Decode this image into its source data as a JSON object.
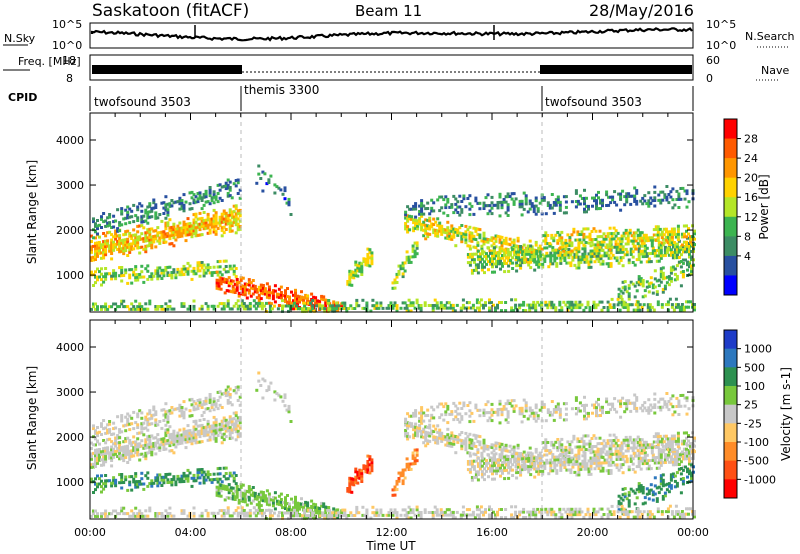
{
  "header": {
    "station": "Saskatoon (fitACF)",
    "beam": "Beam 11",
    "date": "28/May/2016"
  },
  "chart_data": [
    {
      "type": "line",
      "panel": "noise",
      "ylabel_left": "N.Sky",
      "ylabel_right": "N.Search",
      "yticks_left": [
        "10^5",
        "10^0"
      ],
      "yticks_right": [
        "10^5",
        "10^0"
      ],
      "note": "noise level trace across the day"
    },
    {
      "type": "line",
      "panel": "frequency",
      "ylabel_left": "Freq. [MHz]",
      "ylabel_right": "Nave",
      "yticks_left": [
        "18",
        "8"
      ],
      "yticks_right": [
        "60",
        "0"
      ]
    },
    {
      "type": "table",
      "panel": "cpid",
      "label": "CPID",
      "segments": [
        {
          "name": "twofsound 3503",
          "start_h": 0,
          "end_h": 6
        },
        {
          "name": "themis 3300",
          "start_h": 6,
          "end_h": 18
        },
        {
          "name": "twofsound 3503",
          "start_h": 18,
          "end_h": 24
        }
      ]
    },
    {
      "type": "heatmap",
      "panel": "power",
      "ylabel": "Slant Range [km]",
      "ylim": [
        180,
        4600
      ],
      "yticks": [
        1000,
        2000,
        3000,
        4000
      ],
      "xlim_hours": [
        0,
        24
      ],
      "colorbar_label": "Power [dB]",
      "colorbar_ticks": [
        "28",
        "24",
        "20",
        "16",
        "12",
        "8",
        "4"
      ],
      "colorbar_colors": [
        "#ff0000",
        "#ff5a00",
        "#ff9600",
        "#ffd200",
        "#b4e628",
        "#3cb450",
        "#3c8c64",
        "#2850a0",
        "#0000ff"
      ]
    },
    {
      "type": "heatmap",
      "panel": "velocity",
      "ylabel": "Slant Range [km]",
      "ylim": [
        180,
        4600
      ],
      "yticks": [
        1000,
        2000,
        3000,
        4000
      ],
      "xlim_hours": [
        0,
        24
      ],
      "xlabel": "Time UT",
      "xticks": [
        "00:00",
        "04:00",
        "08:00",
        "12:00",
        "16:00",
        "20:00",
        "00:00"
      ],
      "colorbar_label": "Velocity [m s-1]",
      "colorbar_ticks": [
        "1000",
        "500",
        "100",
        "25",
        "-25",
        "-100",
        "-500",
        "-1000"
      ],
      "colorbar_colors": [
        "#1e3cc8",
        "#2d78be",
        "#2d9150",
        "#78c83c",
        "#c8c8c8",
        "#ffc864",
        "#ff8c28",
        "#ff5014",
        "#ff0000"
      ]
    }
  ]
}
